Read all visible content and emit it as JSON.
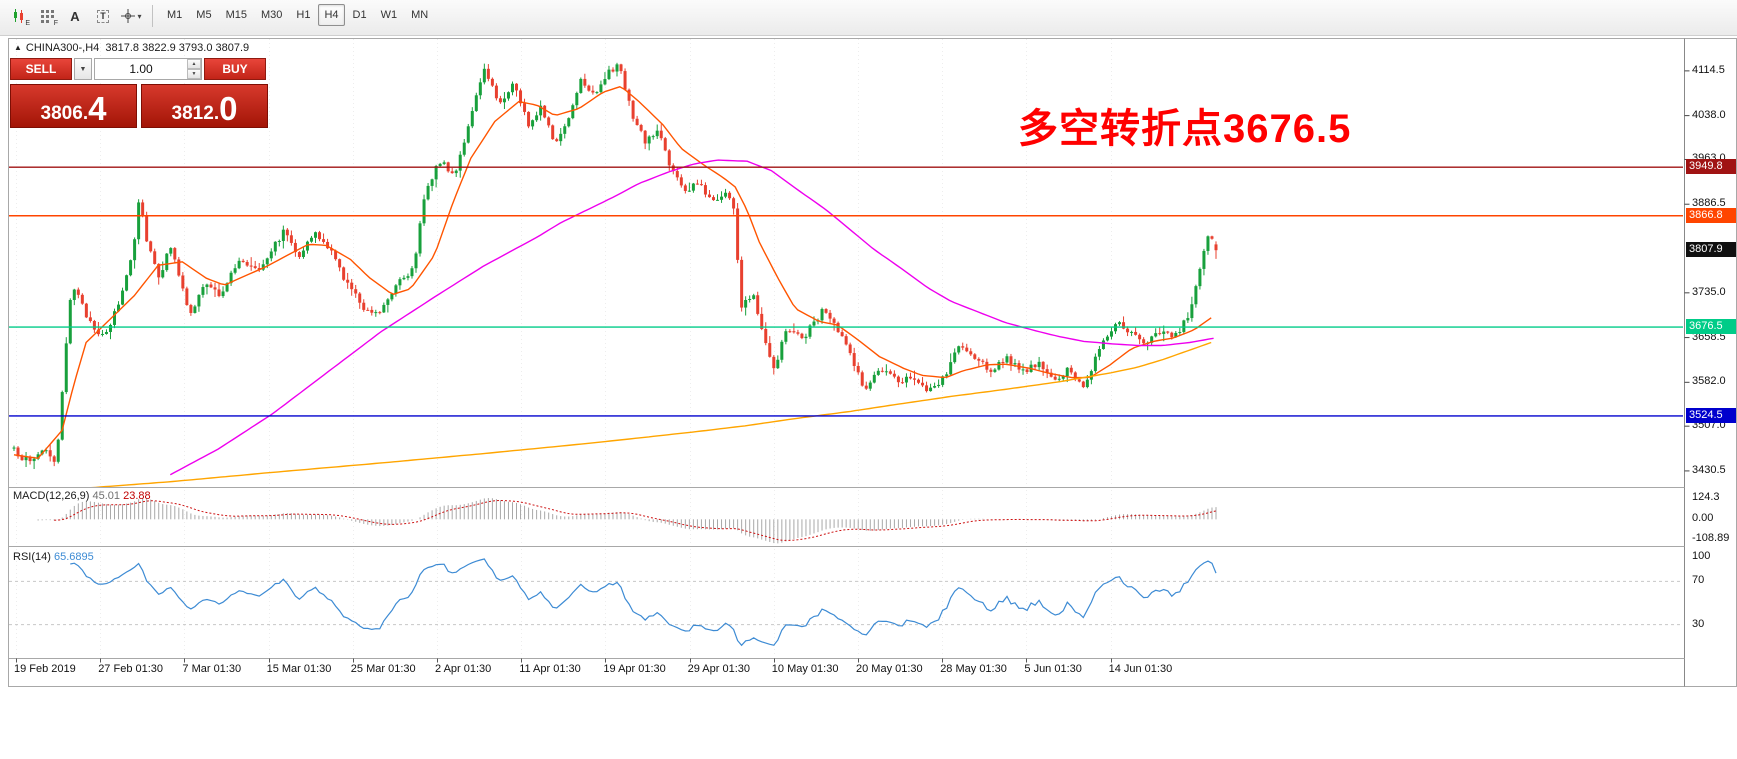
{
  "icons": {
    "caret_down": "▼",
    "caret_up": "▲",
    "caret_down_small": "▾",
    "letter_a": "A",
    "letter_t": "T",
    "marker": "▲"
  },
  "toolbar": {
    "icon_buttons": [
      {
        "name": "candlestick-tool",
        "sub": "E"
      },
      {
        "name": "grid-tool",
        "sub": "F"
      },
      {
        "name": "text-a-tool"
      },
      {
        "name": "textbox-tool"
      },
      {
        "name": "crosshair-tool"
      }
    ],
    "timeframes": [
      "M1",
      "M5",
      "M15",
      "M30",
      "H1",
      "H4",
      "D1",
      "W1",
      "MN"
    ],
    "active_timeframe": "H4"
  },
  "chart": {
    "header": {
      "symbol_period": "CHINA300-,H4",
      "ohlc_text": "3817.8 3822.9 3793.0 3807.9"
    },
    "trade_panel": {
      "sell_label": "SELL",
      "buy_label": "BUY",
      "volume": "1.00",
      "sell_price_main": "3806.",
      "sell_price_big": "4",
      "buy_price_main": "3812.",
      "buy_price_big": "0"
    },
    "annotation": {
      "text": "多空转折点3676.5",
      "color": "#FF0000"
    }
  },
  "chart_data": {
    "type": "candlestick",
    "symbol": "CHINA300-",
    "timeframe": "H4",
    "bars": 300,
    "ylim": [
      3403,
      4169
    ],
    "last_bar": {
      "open": 3817.8,
      "high": 3822.9,
      "low": 3793.0,
      "close": 3807.9
    },
    "up_color": "#18A03C",
    "down_color": "#E8402F",
    "price_ticks": [
      4114.5,
      4038.0,
      3963.0,
      3886.5,
      3735.0,
      3658.5,
      3582.0,
      3507.0,
      3430.5
    ],
    "levels": [
      {
        "price": 3949.8,
        "label": "3949.8",
        "color": "#A01313"
      },
      {
        "price": 3866.8,
        "label": "3866.8",
        "color": "#FF4500"
      },
      {
        "price": 3676.5,
        "label": "3676.5",
        "color": "#00CC88"
      },
      {
        "price": 3524.5,
        "label": "3524.5",
        "color": "#0000CD"
      }
    ],
    "current_price": {
      "value": 3807.9,
      "label": "3807.9",
      "color": "#101010"
    },
    "dates": [
      "19 Feb 2019",
      "27 Feb 01:30",
      "7 Mar 01:30",
      "15 Mar 01:30",
      "25 Mar 01:30",
      "2 Apr 01:30",
      "11 Apr 01:30",
      "19 Apr 01:30",
      "29 Apr 01:30",
      "10 May 01:30",
      "20 May 01:30",
      "28 May 01:30",
      "5 Jun 01:30",
      "14 Jun 01:30"
    ],
    "price_path": [
      [
        0,
        3465
      ],
      [
        0.013,
        3445
      ],
      [
        0.026,
        3472
      ],
      [
        0.034,
        3438
      ],
      [
        0.038,
        3500
      ],
      [
        0.043,
        3640
      ],
      [
        0.048,
        3755
      ],
      [
        0.059,
        3700
      ],
      [
        0.075,
        3655
      ],
      [
        0.088,
        3722
      ],
      [
        0.099,
        3808
      ],
      [
        0.104,
        3898
      ],
      [
        0.111,
        3822
      ],
      [
        0.121,
        3762
      ],
      [
        0.131,
        3820
      ],
      [
        0.146,
        3692
      ],
      [
        0.158,
        3750
      ],
      [
        0.171,
        3732
      ],
      [
        0.187,
        3788
      ],
      [
        0.204,
        3778
      ],
      [
        0.225,
        3842
      ],
      [
        0.237,
        3800
      ],
      [
        0.25,
        3836
      ],
      [
        0.262,
        3812
      ],
      [
        0.277,
        3752
      ],
      [
        0.29,
        3712
      ],
      [
        0.303,
        3700
      ],
      [
        0.32,
        3758
      ],
      [
        0.333,
        3776
      ],
      [
        0.341,
        3898
      ],
      [
        0.353,
        3962
      ],
      [
        0.366,
        3936
      ],
      [
        0.381,
        4040
      ],
      [
        0.392,
        4122
      ],
      [
        0.403,
        4058
      ],
      [
        0.416,
        4094
      ],
      [
        0.428,
        4022
      ],
      [
        0.439,
        4058
      ],
      [
        0.449,
        3988
      ],
      [
        0.461,
        4030
      ],
      [
        0.471,
        4102
      ],
      [
        0.483,
        4076
      ],
      [
        0.493,
        4108
      ],
      [
        0.504,
        4124
      ],
      [
        0.515,
        4032
      ],
      [
        0.526,
        3992
      ],
      [
        0.536,
        4014
      ],
      [
        0.547,
        3946
      ],
      [
        0.559,
        3906
      ],
      [
        0.569,
        3924
      ],
      [
        0.581,
        3892
      ],
      [
        0.592,
        3906
      ],
      [
        0.6,
        3878
      ],
      [
        0.604,
        3706
      ],
      [
        0.615,
        3736
      ],
      [
        0.625,
        3652
      ],
      [
        0.633,
        3606
      ],
      [
        0.643,
        3678
      ],
      [
        0.656,
        3656
      ],
      [
        0.673,
        3706
      ],
      [
        0.685,
        3672
      ],
      [
        0.697,
        3626
      ],
      [
        0.708,
        3566
      ],
      [
        0.72,
        3606
      ],
      [
        0.735,
        3582
      ],
      [
        0.747,
        3596
      ],
      [
        0.76,
        3562
      ],
      [
        0.774,
        3590
      ],
      [
        0.786,
        3646
      ],
      [
        0.799,
        3622
      ],
      [
        0.813,
        3602
      ],
      [
        0.826,
        3626
      ],
      [
        0.838,
        3596
      ],
      [
        0.851,
        3616
      ],
      [
        0.865,
        3582
      ],
      [
        0.876,
        3602
      ],
      [
        0.891,
        3576
      ],
      [
        0.903,
        3642
      ],
      [
        0.917,
        3686
      ],
      [
        0.93,
        3662
      ],
      [
        0.942,
        3646
      ],
      [
        0.954,
        3672
      ],
      [
        0.967,
        3662
      ],
      [
        0.979,
        3706
      ],
      [
        0.988,
        3790
      ],
      [
        0.994,
        3836
      ],
      [
        1,
        3808
      ]
    ],
    "ma_lines": [
      {
        "name": "ma-fast",
        "color": "#FF5500",
        "points": [
          [
            0,
            3458
          ],
          [
            0.02,
            3452
          ],
          [
            0.04,
            3500
          ],
          [
            0.05,
            3580
          ],
          [
            0.06,
            3650
          ],
          [
            0.08,
            3690
          ],
          [
            0.1,
            3730
          ],
          [
            0.12,
            3782
          ],
          [
            0.14,
            3788
          ],
          [
            0.16,
            3760
          ],
          [
            0.175,
            3748
          ],
          [
            0.19,
            3762
          ],
          [
            0.21,
            3780
          ],
          [
            0.23,
            3802
          ],
          [
            0.245,
            3818
          ],
          [
            0.26,
            3816
          ],
          [
            0.28,
            3792
          ],
          [
            0.295,
            3762
          ],
          [
            0.315,
            3732
          ],
          [
            0.33,
            3742
          ],
          [
            0.35,
            3800
          ],
          [
            0.365,
            3888
          ],
          [
            0.38,
            3965
          ],
          [
            0.4,
            4028
          ],
          [
            0.42,
            4062
          ],
          [
            0.435,
            4056
          ],
          [
            0.45,
            4038
          ],
          [
            0.47,
            4050
          ],
          [
            0.49,
            4078
          ],
          [
            0.505,
            4088
          ],
          [
            0.52,
            4062
          ],
          [
            0.54,
            4022
          ],
          [
            0.555,
            3982
          ],
          [
            0.575,
            3952
          ],
          [
            0.59,
            3932
          ],
          [
            0.6,
            3916
          ],
          [
            0.61,
            3876
          ],
          [
            0.62,
            3822
          ],
          [
            0.635,
            3762
          ],
          [
            0.65,
            3708
          ],
          [
            0.67,
            3686
          ],
          [
            0.685,
            3680
          ],
          [
            0.7,
            3658
          ],
          [
            0.72,
            3626
          ],
          [
            0.74,
            3606
          ],
          [
            0.755,
            3594
          ],
          [
            0.775,
            3590
          ],
          [
            0.79,
            3602
          ],
          [
            0.81,
            3612
          ],
          [
            0.825,
            3613
          ],
          [
            0.845,
            3606
          ],
          [
            0.86,
            3598
          ],
          [
            0.88,
            3590
          ],
          [
            0.895,
            3590
          ],
          [
            0.912,
            3612
          ],
          [
            0.93,
            3640
          ],
          [
            0.948,
            3652
          ],
          [
            0.965,
            3658
          ],
          [
            0.982,
            3672
          ],
          [
            1,
            3698
          ]
        ]
      },
      {
        "name": "ma-mid",
        "color": "#EE00EE",
        "points": [
          [
            0.13,
            3424
          ],
          [
            0.17,
            3468
          ],
          [
            0.215,
            3528
          ],
          [
            0.26,
            3598
          ],
          [
            0.305,
            3668
          ],
          [
            0.35,
            3728
          ],
          [
            0.39,
            3780
          ],
          [
            0.435,
            3830
          ],
          [
            0.455,
            3855
          ],
          [
            0.48,
            3880
          ],
          [
            0.5,
            3900
          ],
          [
            0.52,
            3922
          ],
          [
            0.545,
            3942
          ],
          [
            0.565,
            3955
          ],
          [
            0.585,
            3962
          ],
          [
            0.61,
            3960
          ],
          [
            0.63,
            3944
          ],
          [
            0.65,
            3914
          ],
          [
            0.675,
            3878
          ],
          [
            0.695,
            3844
          ],
          [
            0.715,
            3810
          ],
          [
            0.74,
            3774
          ],
          [
            0.76,
            3744
          ],
          [
            0.78,
            3720
          ],
          [
            0.805,
            3700
          ],
          [
            0.825,
            3684
          ],
          [
            0.85,
            3670
          ],
          [
            0.87,
            3660
          ],
          [
            0.89,
            3652
          ],
          [
            0.912,
            3648
          ],
          [
            0.935,
            3645
          ],
          [
            0.956,
            3645
          ],
          [
            0.978,
            3650
          ],
          [
            1,
            3658
          ]
        ]
      },
      {
        "name": "ma-slow",
        "color": "#FFA500",
        "points": [
          [
            0.04,
            3398
          ],
          [
            0.13,
            3412
          ],
          [
            0.215,
            3428
          ],
          [
            0.305,
            3444
          ],
          [
            0.39,
            3460
          ],
          [
            0.48,
            3478
          ],
          [
            0.565,
            3497
          ],
          [
            0.61,
            3508
          ],
          [
            0.65,
            3520
          ],
          [
            0.695,
            3532
          ],
          [
            0.74,
            3546
          ],
          [
            0.78,
            3558
          ],
          [
            0.825,
            3570
          ],
          [
            0.87,
            3583
          ],
          [
            0.912,
            3598
          ],
          [
            0.935,
            3608
          ],
          [
            0.956,
            3621
          ],
          [
            0.978,
            3637
          ],
          [
            1,
            3653
          ]
        ]
      }
    ],
    "macd": {
      "label": "MACD(12,26,9)",
      "main_value": "45.01",
      "signal_value": "23.88",
      "fast": 12,
      "slow": 26,
      "signal": 9,
      "axis_labels": [
        "124.3",
        "0.00",
        "-108.89"
      ],
      "hist_color": "#A8A8A8",
      "signal_color": "#CC1010"
    },
    "rsi": {
      "label": "RSI(14)",
      "value": "65.6895",
      "period": 14,
      "axis_labels": [
        "100",
        "70",
        "30"
      ],
      "levels": [
        70,
        30
      ],
      "line_color": "#3D8BD4"
    }
  }
}
